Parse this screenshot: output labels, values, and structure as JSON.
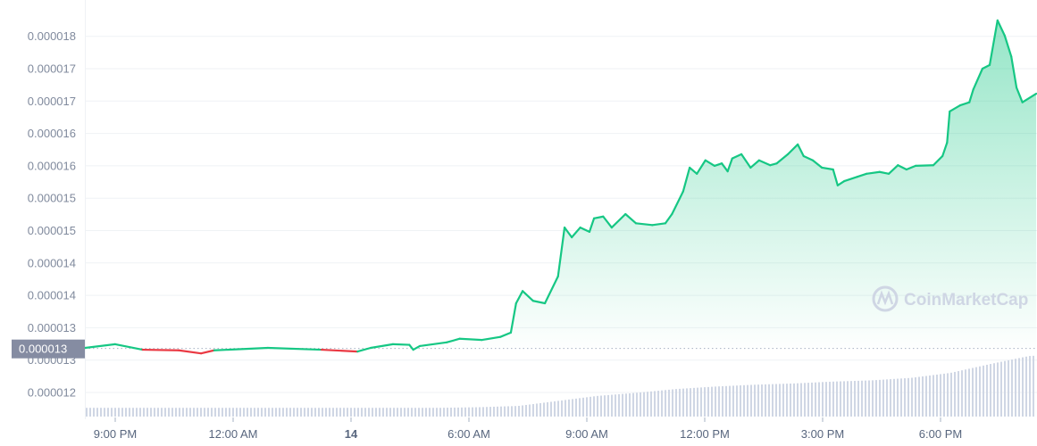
{
  "chart_data": {
    "type": "area",
    "title": "",
    "xlabel": "",
    "ylabel": "",
    "watermark": "CoinMarketCap",
    "grid": true,
    "colors": {
      "up": "#16c784",
      "down": "#ea3943",
      "volume": "#cfd6e4",
      "badge": "#858ca2",
      "grid": "#eff2f5"
    },
    "y_ticks": [
      {
        "value": 1.2e-05,
        "label": "0.000012"
      },
      {
        "value": 1.253e-05,
        "label": "0.000013"
      },
      {
        "value": 1.306e-05,
        "label": "0.000013"
      },
      {
        "value": 1.359e-05,
        "label": "0.000014"
      },
      {
        "value": 1.412e-05,
        "label": "0.000014"
      },
      {
        "value": 1.465e-05,
        "label": "0.000015"
      },
      {
        "value": 1.518e-05,
        "label": "0.000015"
      },
      {
        "value": 1.571e-05,
        "label": "0.000016"
      },
      {
        "value": 1.624e-05,
        "label": "0.000016"
      },
      {
        "value": 1.677e-05,
        "label": "0.000017"
      },
      {
        "value": 1.73e-05,
        "label": "0.000017"
      },
      {
        "value": 1.783e-05,
        "label": "0.000018"
      }
    ],
    "x_ticks": [
      {
        "time": "13 21:00",
        "label": "9:00 PM",
        "bold": false
      },
      {
        "time": "14 00:00",
        "label": "12:00 AM",
        "bold": false
      },
      {
        "time": "14 03:00",
        "label": "14",
        "bold": true
      },
      {
        "time": "14 06:00",
        "label": "6:00 AM",
        "bold": false
      },
      {
        "time": "14 09:00",
        "label": "9:00 AM",
        "bold": false
      },
      {
        "time": "14 12:00",
        "label": "12:00 PM",
        "bold": false
      },
      {
        "time": "14 15:00",
        "label": "3:00 PM",
        "bold": false
      },
      {
        "time": "14 18:00",
        "label": "6:00 PM",
        "bold": false
      }
    ],
    "reference_price": {
      "value": 1.272e-05,
      "label": "0.000013"
    },
    "price": [
      [
        "13 20:14",
        1.273e-05
      ],
      [
        "13 21:00",
        1.279e-05
      ],
      [
        "13 21:42",
        1.27e-05
      ],
      [
        "13 22:37",
        1.269e-05
      ],
      [
        "13 23:11",
        1.264e-05
      ],
      [
        "13 23:31",
        1.269e-05
      ],
      [
        "14 00:53",
        1.273e-05
      ],
      [
        "14 02:15",
        1.27e-05
      ],
      [
        "14 03:10",
        1.267e-05
      ],
      [
        "14 03:30",
        1.273e-05
      ],
      [
        "14 04:04",
        1.279e-05
      ],
      [
        "14 04:29",
        1.278e-05
      ],
      [
        "14 04:35",
        1.27e-05
      ],
      [
        "14 04:45",
        1.276e-05
      ],
      [
        "14 05:26",
        1.282e-05
      ],
      [
        "14 05:46",
        1.288e-05
      ],
      [
        "14 06:20",
        1.286e-05
      ],
      [
        "14 06:48",
        1.291e-05
      ],
      [
        "14 07:04",
        1.298e-05
      ],
      [
        "14 07:12",
        1.346e-05
      ],
      [
        "14 07:22",
        1.366e-05
      ],
      [
        "14 07:38",
        1.35e-05
      ],
      [
        "14 07:56",
        1.346e-05
      ],
      [
        "14 08:16",
        1.39e-05
      ],
      [
        "14 08:26",
        1.47e-05
      ],
      [
        "14 08:37",
        1.454e-05
      ],
      [
        "14 08:50",
        1.47e-05
      ],
      [
        "14 09:04",
        1.463e-05
      ],
      [
        "14 09:11",
        1.485e-05
      ],
      [
        "14 09:25",
        1.488e-05
      ],
      [
        "14 09:38",
        1.47e-05
      ],
      [
        "14 09:59",
        1.492e-05
      ],
      [
        "14 10:15",
        1.477e-05
      ],
      [
        "14 10:40",
        1.474e-05
      ],
      [
        "14 11:00",
        1.477e-05
      ],
      [
        "14 11:10",
        1.492e-05
      ],
      [
        "14 11:27",
        1.529e-05
      ],
      [
        "14 11:37",
        1.568e-05
      ],
      [
        "14 11:48",
        1.558e-05
      ],
      [
        "14 12:01",
        1.58e-05
      ],
      [
        "14 12:15",
        1.571e-05
      ],
      [
        "14 12:26",
        1.575e-05
      ],
      [
        "14 12:35",
        1.562e-05
      ],
      [
        "14 12:42",
        1.583e-05
      ],
      [
        "14 12:56",
        1.59e-05
      ],
      [
        "14 13:10",
        1.568e-05
      ],
      [
        "14 13:23",
        1.58e-05
      ],
      [
        "14 13:40",
        1.572e-05
      ],
      [
        "14 13:50",
        1.575e-05
      ],
      [
        "14 14:07",
        1.59e-05
      ],
      [
        "14 14:22",
        1.606e-05
      ],
      [
        "14 14:31",
        1.587e-05
      ],
      [
        "14 14:45",
        1.58e-05
      ],
      [
        "14 14:59",
        1.568e-05
      ],
      [
        "14 15:16",
        1.565e-05
      ],
      [
        "14 15:23",
        1.539e-05
      ],
      [
        "14 15:33",
        1.546e-05
      ],
      [
        "14 15:53",
        1.553e-05
      ],
      [
        "14 16:07",
        1.558e-05
      ],
      [
        "14 16:27",
        1.561e-05
      ],
      [
        "14 16:41",
        1.558e-05
      ],
      [
        "14 16:55",
        1.572e-05
      ],
      [
        "14 17:08",
        1.565e-05
      ],
      [
        "14 17:22",
        1.571e-05
      ],
      [
        "14 17:49",
        1.572e-05
      ],
      [
        "14 18:03",
        1.587e-05
      ],
      [
        "14 18:10",
        1.609e-05
      ],
      [
        "14 18:14",
        1.66e-05
      ],
      [
        "14 18:30",
        1.67e-05
      ],
      [
        "14 18:44",
        1.675e-05
      ],
      [
        "14 18:50",
        1.696e-05
      ],
      [
        "14 19:04",
        1.73e-05
      ],
      [
        "14 19:15",
        1.736e-05
      ],
      [
        "14 19:27",
        1.809e-05
      ],
      [
        "14 19:38",
        1.784e-05
      ],
      [
        "14 19:48",
        1.75e-05
      ],
      [
        "14 19:56",
        1.699e-05
      ],
      [
        "14 20:05",
        1.675e-05
      ],
      [
        "14 20:26",
        1.689e-05
      ]
    ],
    "volume_relative_hourly": [
      0.14,
      0.14,
      0.14,
      0.14,
      0.14,
      0.14,
      0.14,
      0.14,
      0.14,
      0.14,
      0.15,
      0.17,
      0.25,
      0.33,
      0.38,
      0.44,
      0.48,
      0.51,
      0.53,
      0.56,
      0.58,
      0.62,
      0.7,
      0.84,
      0.97,
      1.0
    ]
  }
}
